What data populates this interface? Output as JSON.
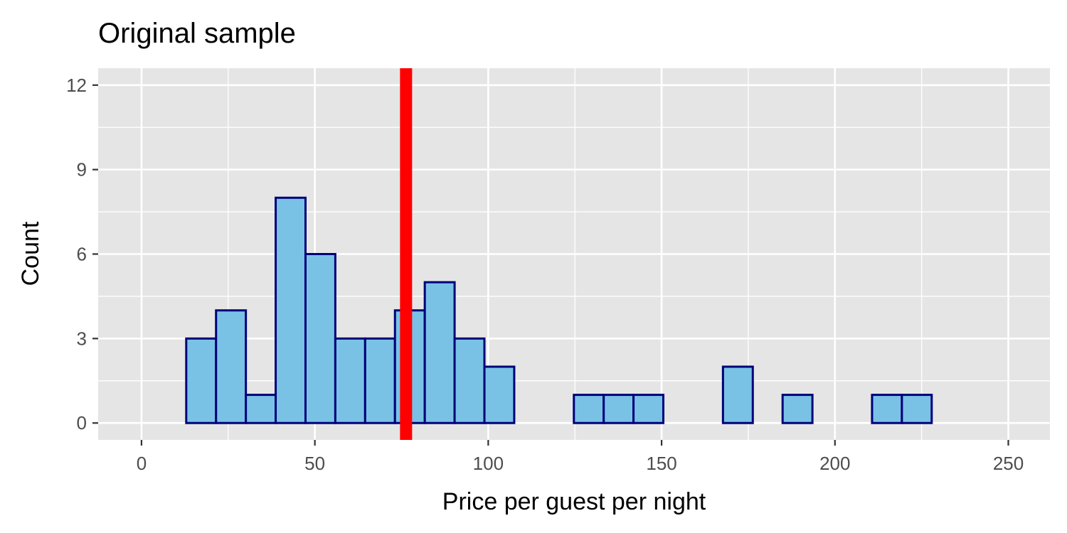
{
  "chart_data": {
    "type": "bar",
    "title": "Original sample",
    "xlabel": "Price per guest per night",
    "ylabel": "Count",
    "xlim": [
      -12.5,
      262
    ],
    "ylim": [
      -0.6,
      12.6
    ],
    "xticks": [
      0,
      50,
      100,
      150,
      200,
      250
    ],
    "yticks": [
      0,
      3,
      6,
      9,
      12
    ],
    "grid": true,
    "bin_width": 8.6,
    "bins": [
      {
        "x0": 4.3,
        "x1": 12.9,
        "count": 0
      },
      {
        "x0": 12.9,
        "x1": 21.5,
        "count": 3
      },
      {
        "x0": 21.5,
        "x1": 30.1,
        "count": 4
      },
      {
        "x0": 30.1,
        "x1": 38.7,
        "count": 1
      },
      {
        "x0": 38.7,
        "x1": 47.3,
        "count": 8
      },
      {
        "x0": 47.3,
        "x1": 55.9,
        "count": 6
      },
      {
        "x0": 55.9,
        "x1": 64.5,
        "count": 3
      },
      {
        "x0": 64.5,
        "x1": 73.1,
        "count": 3
      },
      {
        "x0": 73.1,
        "x1": 81.7,
        "count": 4
      },
      {
        "x0": 81.7,
        "x1": 90.3,
        "count": 5
      },
      {
        "x0": 90.3,
        "x1": 98.9,
        "count": 3
      },
      {
        "x0": 98.9,
        "x1": 107.5,
        "count": 2
      },
      {
        "x0": 107.5,
        "x1": 116.1,
        "count": 0
      },
      {
        "x0": 116.1,
        "x1": 124.7,
        "count": 0
      },
      {
        "x0": 124.7,
        "x1": 133.3,
        "count": 1
      },
      {
        "x0": 133.3,
        "x1": 141.9,
        "count": 1
      },
      {
        "x0": 141.9,
        "x1": 150.5,
        "count": 1
      },
      {
        "x0": 150.5,
        "x1": 159.1,
        "count": 0
      },
      {
        "x0": 159.1,
        "x1": 167.7,
        "count": 0
      },
      {
        "x0": 167.7,
        "x1": 176.3,
        "count": 2
      },
      {
        "x0": 176.3,
        "x1": 184.9,
        "count": 0
      },
      {
        "x0": 184.9,
        "x1": 193.5,
        "count": 1
      },
      {
        "x0": 193.5,
        "x1": 202.1,
        "count": 0
      },
      {
        "x0": 202.1,
        "x1": 210.7,
        "count": 0
      },
      {
        "x0": 210.7,
        "x1": 219.3,
        "count": 1
      },
      {
        "x0": 219.3,
        "x1": 227.9,
        "count": 1
      },
      {
        "x0": 227.9,
        "x1": 236.5,
        "count": 0
      },
      {
        "x0": 236.5,
        "x1": 245.1,
        "count": 0
      }
    ],
    "reference_line": {
      "x": 76.3
    },
    "colors": {
      "bar_fill": "#7ac2e5",
      "bar_outline": "#00007a",
      "reference_line": "#ff0000",
      "panel_background": "#e5e5e5",
      "grid": "#ffffff"
    }
  }
}
